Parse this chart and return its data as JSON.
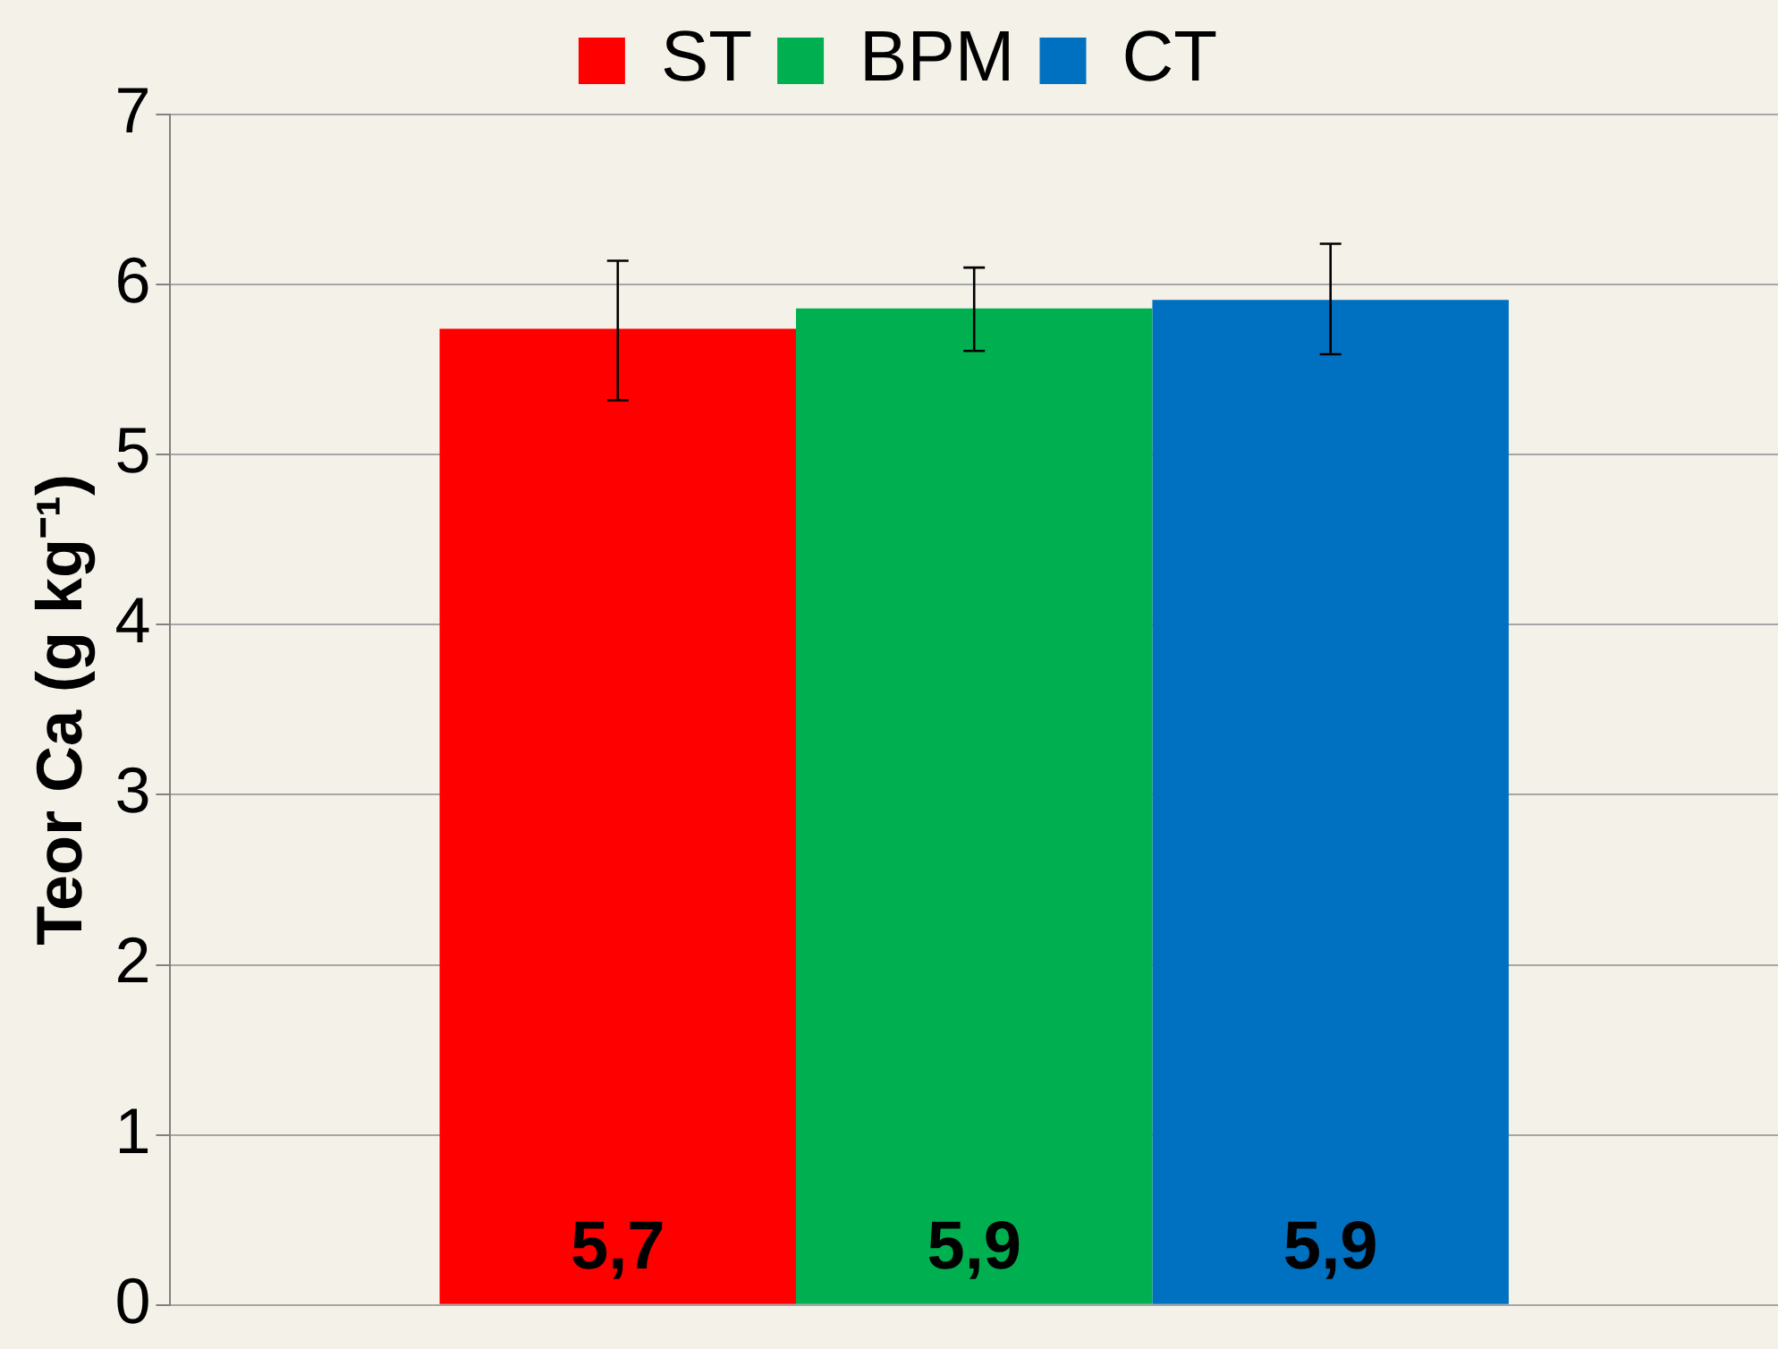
{
  "chart_data": {
    "type": "bar",
    "ylabel": "Teor Ca (g kg⁻¹)",
    "categories": [
      null
    ],
    "series": [
      {
        "name": "ST",
        "color": "#ff0000",
        "values": [
          5.74
        ],
        "errors": [
          [
            5.32,
            6.14
          ]
        ],
        "value_labels": [
          "5,7"
        ]
      },
      {
        "name": "BPM",
        "color": "#00b050",
        "values": [
          5.86
        ],
        "errors": [
          [
            5.61,
            6.1
          ]
        ],
        "value_labels": [
          "5,9"
        ]
      },
      {
        "name": "CT",
        "color": "#0070c0",
        "values": [
          5.91
        ],
        "errors": [
          [
            5.59,
            6.24
          ]
        ],
        "value_labels": [
          "5,9"
        ]
      }
    ],
    "ylim": [
      0,
      7
    ],
    "yticks": [
      0,
      1,
      2,
      3,
      4,
      5,
      6,
      7
    ],
    "grid": "y",
    "legend": "top"
  }
}
